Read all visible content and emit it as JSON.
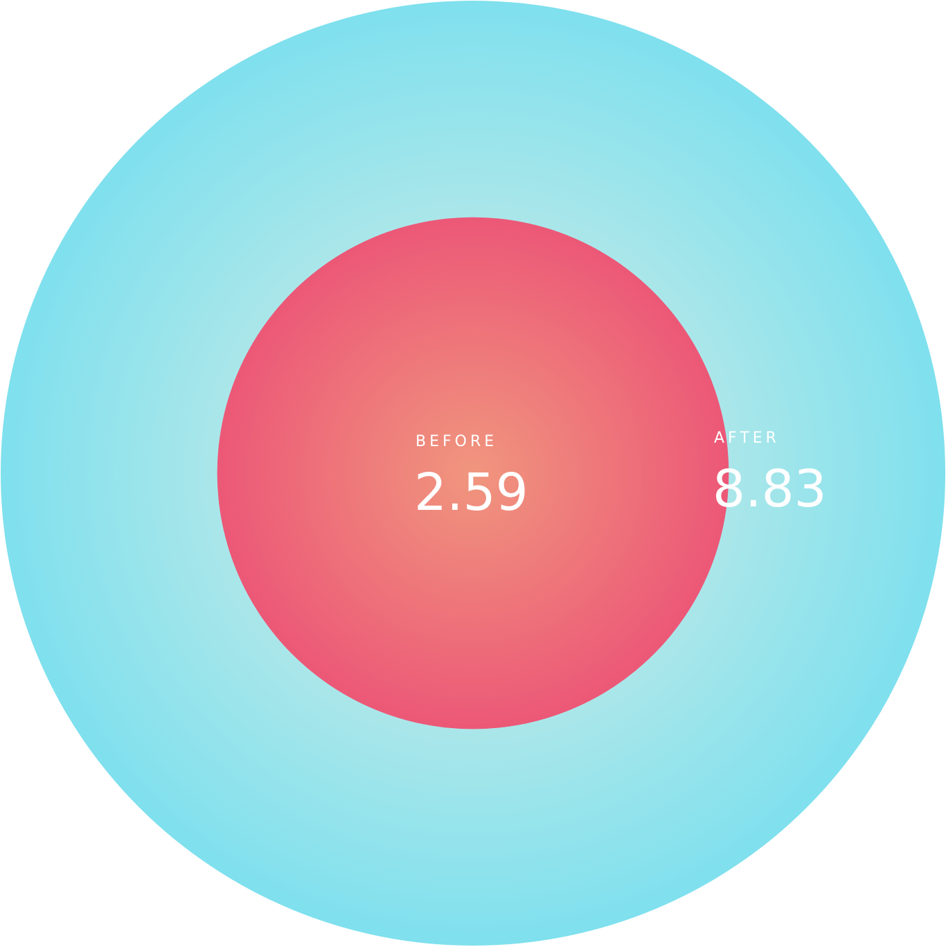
{
  "chart_data": {
    "type": "bubble",
    "series": [
      {
        "name": "AFTER",
        "value": 8.83
      },
      {
        "name": "BEFORE",
        "value": 2.59
      }
    ],
    "title": "",
    "xlabel": "",
    "ylabel": "",
    "colors": {
      "after_center": "#c8ebe6",
      "after_edge": "#7fe0ee",
      "before_center": "#f0967e",
      "before_edge": "#ec5877",
      "text": "#ffffff"
    }
  }
}
